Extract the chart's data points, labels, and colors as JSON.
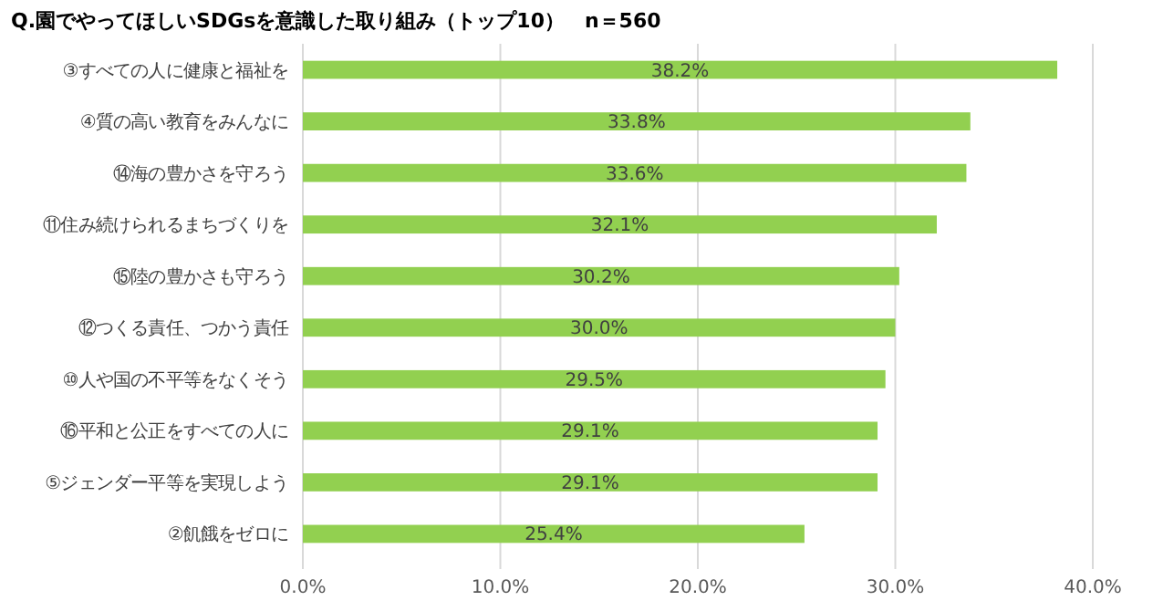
{
  "chart_data": {
    "type": "bar",
    "orientation": "horizontal",
    "title": "Q.園でやってほしいSDGsを意識した取り組み（トップ10）　n＝560",
    "categories": [
      "③すべての人に健康と福祉を",
      "④質の高い教育をみんなに",
      "⑭海の豊かさを守ろう",
      "⑪住み続けられるまちづくりを",
      "⑮陸の豊かさも守ろう",
      "⑫つくる責任、つかう責任",
      "⑩人や国の不平等をなくそう",
      "⑯平和と公正をすべての人に",
      "⑤ジェンダー平等を実現しよう",
      "②飢餓をゼロに"
    ],
    "values": [
      38.2,
      33.8,
      33.6,
      32.1,
      30.2,
      30.0,
      29.5,
      29.1,
      29.1,
      25.4
    ],
    "value_labels": [
      "38.2%",
      "33.8%",
      "33.6%",
      "32.1%",
      "30.2%",
      "30.0%",
      "29.5%",
      "29.1%",
      "29.1%",
      "25.4%"
    ],
    "color": "#92d050",
    "xlim": [
      0,
      40
    ],
    "xticks": [
      {
        "value": 0,
        "label": "0.0%"
      },
      {
        "value": 10,
        "label": "10.0%"
      },
      {
        "value": 20,
        "label": "20.0%"
      },
      {
        "value": 30,
        "label": "30.0%"
      },
      {
        "value": 40,
        "label": "40.0%"
      }
    ],
    "grid": "x"
  }
}
